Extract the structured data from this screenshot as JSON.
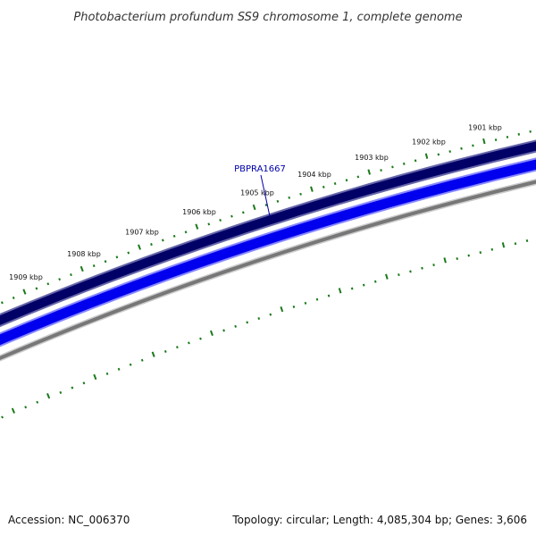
{
  "title": "Photobacterium profundum SS9 chromosome 1, complete genome",
  "accession_text": "Accession: NC_006370",
  "summary_text": "Topology: circular; Length: 4,085,304 bp; Genes: 3,606",
  "ticks": [
    {
      "label": "1901 kbp"
    },
    {
      "label": "1902 kbp"
    },
    {
      "label": "1903 kbp"
    },
    {
      "label": "1904 kbp"
    },
    {
      "label": "1905 kbp"
    },
    {
      "label": "1906 kbp"
    },
    {
      "label": "1907 kbp"
    },
    {
      "label": "1908 kbp"
    },
    {
      "label": "1909 kbp"
    }
  ],
  "gene": {
    "name": "PBPRA1667"
  },
  "colors": {
    "tick_green": "#1a7a1a",
    "forward_strand": "#000066",
    "forward_strand_light": "#6666aa",
    "reverse_strand": "#0000ee",
    "reverse_strand_light": "#8888ff",
    "backbone": "#777777",
    "gene_label": "#0000aa"
  }
}
